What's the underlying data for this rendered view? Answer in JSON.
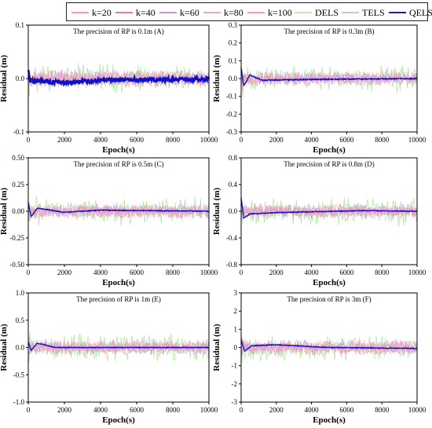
{
  "legend": {
    "items": [
      {
        "label": "k=20",
        "color": "#f4a0a0"
      },
      {
        "label": "k=40",
        "color": "#e87a9a"
      },
      {
        "label": "k=60",
        "color": "#d890c8"
      },
      {
        "label": "k=80",
        "color": "#e7a6d6"
      },
      {
        "label": "k=100",
        "color": "#ff99bb"
      },
      {
        "label": "DELS",
        "color": "#c9e9b0"
      },
      {
        "label": "TELS",
        "color": "#b8c8f0"
      },
      {
        "label": "QELS",
        "color": "#1a1acc"
      }
    ]
  },
  "colors": {
    "k_lines": [
      "#f4a0a0",
      "#e87a9a",
      "#d890c8",
      "#e7a6d6",
      "#ff99bb"
    ],
    "dels": "#9fe08a",
    "tels": "#a9c0ef",
    "qels": "#1010c8"
  },
  "chart_data": [
    {
      "type": "line",
      "title": "The precision of RP is 0.1m (A)",
      "xlabel": "Epoch(s)",
      "ylabel": "Residual (m)",
      "xlim": [
        0,
        10000
      ],
      "ylim": [
        -0.1,
        0.1
      ],
      "xticks": [
        0,
        2000,
        4000,
        6000,
        8000,
        10000
      ],
      "yticks": [
        "-0.1",
        "0.0",
        "0.1"
      ],
      "yvals": [
        -0.1,
        0.0,
        0.1
      ],
      "noise": {
        "k": 0.012,
        "dels": 0.022,
        "tels": 0.014,
        "qels": 0.004
      },
      "qels_profile": [
        [
          0,
          0.015
        ],
        [
          100,
          -0.005
        ],
        [
          2000,
          -0.008
        ],
        [
          4000,
          -0.003
        ],
        [
          6000,
          -0.002
        ],
        [
          8000,
          -0.002
        ],
        [
          10000,
          -0.001
        ]
      ]
    },
    {
      "type": "line",
      "title": "The precision of RP is 0.3m (B)",
      "xlabel": "Epoch(s)",
      "ylabel": "Residual (m)",
      "xlim": [
        0,
        10000
      ],
      "ylim": [
        -0.3,
        0.3
      ],
      "xticks": [
        0,
        2000,
        4000,
        6000,
        8000,
        10000
      ],
      "yticks": [
        "-0.3",
        "-0.2",
        "-0.1",
        "0.0",
        "0.1",
        "0.2",
        "0.3"
      ],
      "yvals": [
        -0.3,
        -0.2,
        -0.1,
        0.0,
        0.1,
        0.2,
        0.3
      ],
      "noise": {
        "k": 0.03,
        "dels": 0.06,
        "tels": 0.035,
        "qels": 0.003
      },
      "qels_profile": [
        [
          0,
          0.06
        ],
        [
          150,
          -0.04
        ],
        [
          500,
          0.02
        ],
        [
          1200,
          -0.01
        ],
        [
          4000,
          -0.005
        ],
        [
          10000,
          0.0
        ]
      ]
    },
    {
      "type": "line",
      "title": "The precision of RP is 0.5m (C)",
      "xlabel": "Epoch(s)",
      "ylabel": "Residual (m)",
      "xlim": [
        0,
        10000
      ],
      "ylim": [
        -0.5,
        0.5
      ],
      "xticks": [
        0,
        2000,
        4000,
        6000,
        8000,
        10000
      ],
      "yticks": [
        "-0.50",
        "-0.25",
        "0.00",
        "0.25",
        "0.50"
      ],
      "yvals": [
        -0.5,
        -0.25,
        0.0,
        0.25,
        0.5
      ],
      "noise": {
        "k": 0.05,
        "dels": 0.1,
        "tels": 0.06,
        "qels": 0.004
      },
      "qels_profile": [
        [
          0,
          0.08
        ],
        [
          150,
          -0.05
        ],
        [
          500,
          0.03
        ],
        [
          2000,
          -0.01
        ],
        [
          4000,
          0.01
        ],
        [
          10000,
          0.0
        ]
      ]
    },
    {
      "type": "line",
      "title": "The precision of RP is 0.8m (D)",
      "xlabel": "Epoch(s)",
      "ylabel": "Residual (m)",
      "xlim": [
        0,
        10000
      ],
      "ylim": [
        -0.8,
        0.8
      ],
      "xticks": [
        0,
        2000,
        4000,
        6000,
        8000,
        10000
      ],
      "yticks": [
        "-0.8",
        "-0.4",
        "0.0",
        "0.4",
        "0.8"
      ],
      "yvals": [
        -0.8,
        -0.4,
        0.0,
        0.4,
        0.8
      ],
      "noise": {
        "k": 0.08,
        "dels": 0.16,
        "tels": 0.1,
        "qels": 0.005
      },
      "qels_profile": [
        [
          0,
          0.2
        ],
        [
          150,
          -0.1
        ],
        [
          500,
          -0.04
        ],
        [
          2000,
          -0.02
        ],
        [
          7000,
          0.01
        ],
        [
          10000,
          0.0
        ]
      ]
    },
    {
      "type": "line",
      "title": "The precision of RP is 1m (E)",
      "xlabel": "Epoch(s)",
      "ylabel": "Residual (m)",
      "xlim": [
        0,
        10000
      ],
      "ylim": [
        -1.0,
        1.0
      ],
      "xticks": [
        0,
        2000,
        4000,
        6000,
        8000,
        10000
      ],
      "yticks": [
        "-1.0",
        "-0.5",
        "0.0",
        "0.5",
        "1.0"
      ],
      "yvals": [
        -1.0,
        -0.5,
        0.0,
        0.5,
        1.0
      ],
      "noise": {
        "k": 0.1,
        "dels": 0.2,
        "tels": 0.12,
        "qels": 0.006
      },
      "qels_profile": [
        [
          0,
          0.1
        ],
        [
          150,
          -0.05
        ],
        [
          500,
          0.08
        ],
        [
          1500,
          0.0
        ],
        [
          6000,
          0.0
        ],
        [
          10000,
          0.0
        ]
      ]
    },
    {
      "type": "line",
      "title": "The precision of RP is 3m (F)",
      "xlabel": "Epoch(s)",
      "ylabel": "Residual (m)",
      "xlim": [
        0,
        10000
      ],
      "ylim": [
        -3,
        3
      ],
      "xticks": [
        0,
        2000,
        4000,
        6000,
        8000,
        10000
      ],
      "yticks": [
        "-3",
        "-2",
        "-1",
        "0",
        "1",
        "2",
        "3"
      ],
      "yvals": [
        -3,
        -2,
        -1,
        0,
        1,
        2,
        3
      ],
      "noise": {
        "k": 0.3,
        "dels": 0.55,
        "tels": 0.35,
        "qels": 0.02
      },
      "qels_profile": [
        [
          0,
          0.4
        ],
        [
          200,
          -0.2
        ],
        [
          600,
          0.1
        ],
        [
          2000,
          0.15
        ],
        [
          5000,
          0.0
        ],
        [
          10000,
          -0.05
        ]
      ]
    }
  ]
}
